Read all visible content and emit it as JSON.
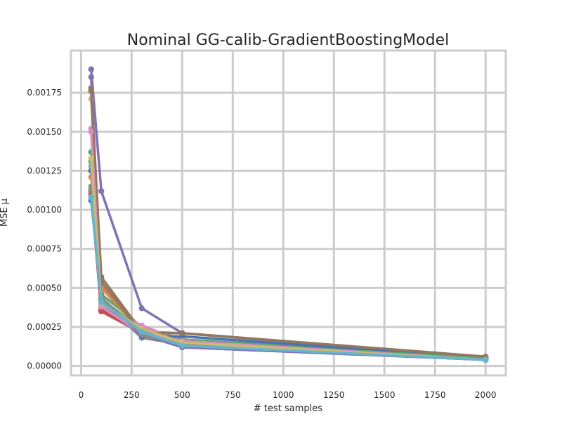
{
  "chart_data": {
    "type": "line",
    "title": "Nominal GG-calib-GradientBoostingModel",
    "xlabel": "# test samples",
    "ylabel": "MSE μ",
    "xlim": [
      -50,
      2100
    ],
    "ylim": [
      -6e-05,
      0.00202
    ],
    "x": [
      50,
      100,
      300,
      500,
      2000
    ],
    "xticks": [
      0,
      250,
      500,
      750,
      1000,
      1250,
      1500,
      1750,
      2000
    ],
    "xtick_labels": [
      "0",
      "250",
      "500",
      "750",
      "1000",
      "1250",
      "1500",
      "1750",
      "2000"
    ],
    "yticks": [
      0.0,
      0.00025,
      0.0005,
      0.00075,
      0.001,
      0.00125,
      0.0015,
      0.00175
    ],
    "ytick_labels": [
      "0.00000",
      "0.00025",
      "0.00050",
      "0.00075",
      "0.00100",
      "0.00125",
      "0.00150",
      "0.00175"
    ],
    "grid": true,
    "style": {
      "background": "#ffffff",
      "grid_color": "#cccccc",
      "frame_color": "#cccccc"
    },
    "series": [
      {
        "color": "#4c72b0",
        "values": [
          0.00125,
          0.00042,
          0.00021,
          0.00012,
          4e-05
        ]
      },
      {
        "color": "#dd8452",
        "values": [
          0.00121,
          0.00051,
          0.00024,
          0.00015,
          5e-05
        ]
      },
      {
        "color": "#55a868",
        "values": [
          0.00137,
          0.00046,
          0.00025,
          0.00017,
          5e-05
        ]
      },
      {
        "color": "#c44e52",
        "values": [
          0.00112,
          0.00035,
          0.00021,
          0.00014,
          4e-05
        ]
      },
      {
        "color": "#8172b3",
        "values": [
          0.0019,
          0.00112,
          0.00037,
          0.00021,
          5e-05
        ]
      },
      {
        "color": "#937860",
        "values": [
          0.00178,
          0.00057,
          0.00022,
          0.00021,
          6e-05
        ]
      },
      {
        "color": "#da8bc3",
        "values": [
          0.00152,
          0.00039,
          0.00026,
          0.00016,
          4e-05
        ]
      },
      {
        "color": "#8c8c8c",
        "values": [
          0.00115,
          0.00042,
          0.00018,
          0.00014,
          4e-05
        ]
      },
      {
        "color": "#ccb974",
        "values": [
          0.00171,
          0.00041,
          0.00023,
          0.00015,
          5e-05
        ]
      },
      {
        "color": "#64b5cd",
        "values": [
          0.00128,
          0.00038,
          0.0002,
          0.00013,
          4e-05
        ]
      },
      {
        "color": "#4c72b0",
        "values": [
          0.00106,
          0.00044,
          0.00019,
          0.00019,
          5e-05
        ]
      },
      {
        "color": "#dd8452",
        "values": [
          0.00176,
          0.0005,
          0.00022,
          0.00014,
          4e-05
        ]
      },
      {
        "color": "#55a868",
        "values": [
          0.00131,
          0.00043,
          0.00023,
          0.00016,
          5e-05
        ]
      },
      {
        "color": "#c44e52",
        "values": [
          0.0011,
          0.00036,
          0.00022,
          0.00013,
          4e-05
        ]
      },
      {
        "color": "#8172b3",
        "values": [
          0.00185,
          0.00039,
          0.0002,
          0.00012,
          4e-05
        ]
      },
      {
        "color": "#937860",
        "values": [
          0.00176,
          0.00054,
          0.00021,
          0.00021,
          6e-05
        ]
      },
      {
        "color": "#da8bc3",
        "values": [
          0.0015,
          0.00038,
          0.00021,
          0.00016,
          4e-05
        ]
      },
      {
        "color": "#8c8c8c",
        "values": [
          0.00113,
          0.00044,
          0.0002,
          0.00014,
          4e-05
        ]
      },
      {
        "color": "#ccb974",
        "values": [
          0.00133,
          0.0004,
          0.00024,
          0.00015,
          4e-05
        ]
      },
      {
        "color": "#64b5cd",
        "values": [
          0.00108,
          0.00041,
          0.00022,
          0.00013,
          4e-05
        ]
      }
    ]
  }
}
